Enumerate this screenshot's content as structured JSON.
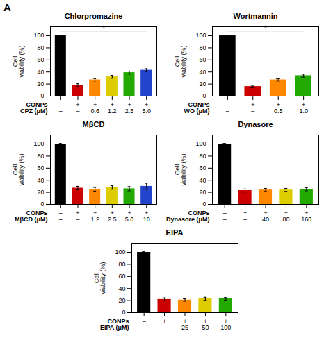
{
  "title": "A",
  "chart_data": [
    {
      "type": "bar",
      "title": "Chlorpromazine",
      "category_rows": [
        "CONPs",
        "CPZ (μM)"
      ],
      "categories": [
        [
          "–",
          "–"
        ],
        [
          "+",
          "–"
        ],
        [
          "+",
          "0.6"
        ],
        [
          "+",
          "1.2"
        ],
        [
          "+",
          "2.5"
        ],
        [
          "+",
          "5.0"
        ]
      ],
      "values": [
        100,
        18,
        27,
        32,
        39,
        43
      ],
      "errors": [
        1.0,
        2.5,
        2.0,
        2.5,
        2.5,
        2.5
      ],
      "colors": [
        "#000000",
        "#cc0000",
        "#ff8800",
        "#ddcc00",
        "#22aa00",
        "#2244cc"
      ],
      "ylabel": "Cell\nviability (%)",
      "ylim": [
        0,
        115
      ],
      "yticks": [
        0,
        20,
        40,
        60,
        80,
        100
      ],
      "grid": false,
      "annotations": [
        {
          "text": "*",
          "y": 108,
          "color": "#888888"
        }
      ]
    },
    {
      "type": "bar",
      "title": "Wortmannin",
      "category_rows": [
        "CONPs",
        "WO (μM)"
      ],
      "categories": [
        [
          "–",
          "–"
        ],
        [
          "+",
          "–"
        ],
        [
          "+",
          "0.5"
        ],
        [
          "+",
          "1.0"
        ]
      ],
      "values": [
        100,
        16,
        27,
        34
      ],
      "errors": [
        1.0,
        2.0,
        2.0,
        2.5
      ],
      "colors": [
        "#000000",
        "#cc0000",
        "#ff8800",
        "#22aa00"
      ],
      "ylabel": "Cell\nviability (%)",
      "ylim": [
        0,
        115
      ],
      "yticks": [
        0,
        20,
        40,
        60,
        80,
        100
      ],
      "grid": false,
      "annotations": [
        {
          "text": "*",
          "y": 108,
          "color": "#888888"
        }
      ]
    },
    {
      "type": "bar",
      "title": "MβCD",
      "category_rows": [
        "CONPs",
        "MβCD (μM)"
      ],
      "categories": [
        [
          "–",
          "–"
        ],
        [
          "+",
          "–"
        ],
        [
          "+",
          "1.2"
        ],
        [
          "+",
          "2.5"
        ],
        [
          "+",
          "5.0"
        ],
        [
          "+",
          "10"
        ]
      ],
      "values": [
        100,
        27,
        25,
        28,
        26,
        30
      ],
      "errors": [
        1.0,
        3.0,
        3.0,
        3.0,
        3.5,
        5.0
      ],
      "colors": [
        "#000000",
        "#cc0000",
        "#ff8800",
        "#ddcc00",
        "#22aa00",
        "#2244cc"
      ],
      "ylabel": "Cell\nviability (%)",
      "ylim": [
        0,
        115
      ],
      "yticks": [
        0,
        20,
        40,
        60,
        80,
        100
      ],
      "grid": false
    },
    {
      "type": "bar",
      "title": "Dynasore",
      "category_rows": [
        "CONPs",
        "Dynasore (μM)"
      ],
      "categories": [
        [
          "–",
          "–"
        ],
        [
          "+",
          "–"
        ],
        [
          "+",
          "40"
        ],
        [
          "+",
          "80"
        ],
        [
          "+",
          "160"
        ]
      ],
      "values": [
        100,
        23,
        24,
        24,
        25
      ],
      "errors": [
        1.0,
        2.5,
        2.5,
        2.5,
        2.5
      ],
      "colors": [
        "#000000",
        "#cc0000",
        "#ff8800",
        "#ddcc00",
        "#22aa00"
      ],
      "ylabel": "Cell\nviability (%)",
      "ylim": [
        0,
        115
      ],
      "yticks": [
        0,
        20,
        40,
        60,
        80,
        100
      ],
      "grid": false
    },
    {
      "type": "bar",
      "title": "EIPA",
      "category_rows": [
        "CONPs",
        "EIPA (μM)"
      ],
      "categories": [
        [
          "–",
          "–"
        ],
        [
          "+",
          "–"
        ],
        [
          "+",
          "25"
        ],
        [
          "+",
          "50"
        ],
        [
          "+",
          "100"
        ]
      ],
      "values": [
        100,
        22,
        21,
        23,
        23
      ],
      "errors": [
        1.0,
        2.5,
        2.0,
        2.5,
        2.0
      ],
      "colors": [
        "#000000",
        "#cc0000",
        "#ff8800",
        "#ddcc00",
        "#22aa00"
      ],
      "ylabel": "Cell\nviability (%)",
      "ylim": [
        0,
        115
      ],
      "yticks": [
        0,
        20,
        40,
        60,
        80,
        100
      ],
      "grid": false
    }
  ]
}
